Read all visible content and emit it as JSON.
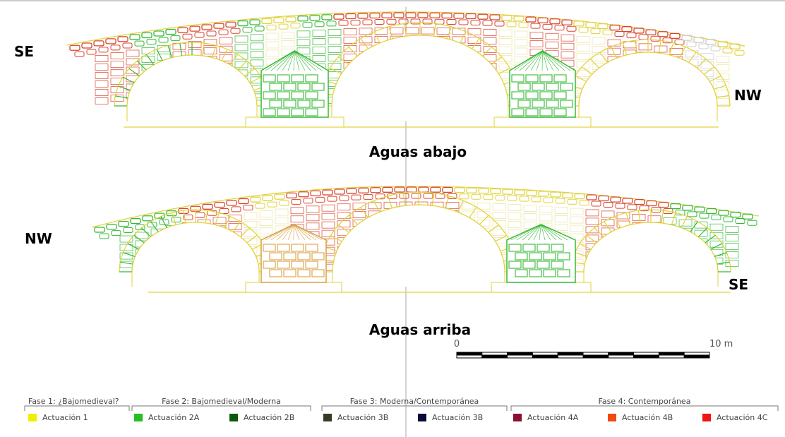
{
  "upper": {
    "title": "Aguas abajo",
    "left": "SE",
    "right": "NW"
  },
  "lower": {
    "title": "Aguas arriba",
    "left": "NW",
    "right": "SE"
  },
  "scale": {
    "start": "0",
    "end": "10 m"
  },
  "legend": {
    "phases": [
      {
        "title": "Fase 1: ¿Bajomedieval?",
        "items": [
          {
            "label": "Actuación 1",
            "color": "#f2ee00"
          }
        ]
      },
      {
        "title": "Fase 2: Bajomedieval/Moderna",
        "items": [
          {
            "label": "Actuación 2A",
            "color": "#22c022"
          },
          {
            "label": "Actuación 2B",
            "color": "#0b5a0b"
          }
        ]
      },
      {
        "title": "Fase 3: Moderna/Contemporánea",
        "items": [
          {
            "label": "Actuación 3B",
            "color": "#3a3a22"
          },
          {
            "label": "Actuación 3B",
            "color": "#0a0a3a"
          }
        ]
      },
      {
        "title": "Fase 4: Contemporánea",
        "items": [
          {
            "label": "Actuación 4A",
            "color": "#8a1030"
          },
          {
            "label": "Actuación 4B",
            "color": "#f04a10"
          },
          {
            "label": "Actuación 4C",
            "color": "#f01414"
          }
        ]
      }
    ]
  }
}
